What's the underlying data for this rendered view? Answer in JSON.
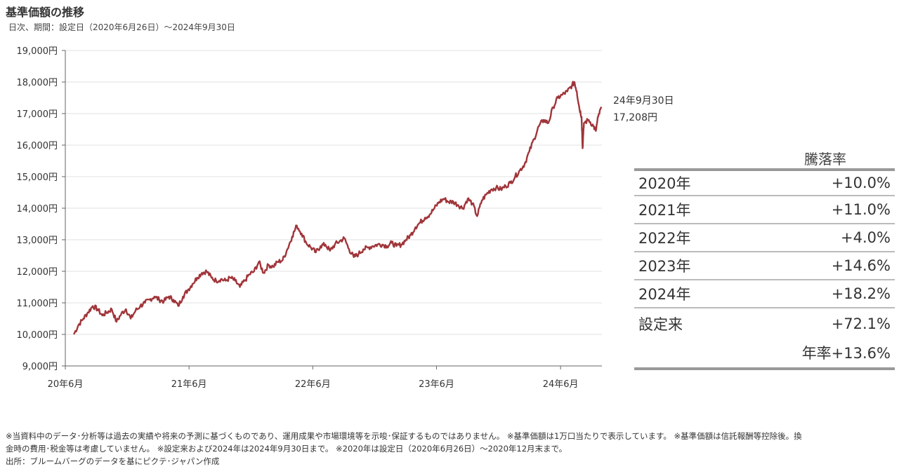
{
  "header": {
    "title": "基準価額の推移",
    "subtitle": "日次、期間：設定日（2020年6月26日）～2024年9月30日"
  },
  "chart_data": {
    "type": "line",
    "y_tick_labels": [
      "9,000円",
      "10,000円",
      "11,000円",
      "12,000円",
      "13,000円",
      "14,000円",
      "15,000円",
      "16,000円",
      "17,000円",
      "18,000円",
      "19,000円"
    ],
    "y_ticks": [
      9000,
      10000,
      11000,
      12000,
      13000,
      14000,
      15000,
      16000,
      17000,
      18000,
      19000
    ],
    "ylim": [
      9000,
      19000
    ],
    "x_tick_labels": [
      "20年6月",
      "21年6月",
      "22年6月",
      "23年6月",
      "24年6月"
    ],
    "x_ticks": [
      "2020-06",
      "2021-06",
      "2022-06",
      "2023-06",
      "2024-06"
    ],
    "xlim": [
      "2020-06-01",
      "2024-10-01"
    ],
    "grid": true,
    "series": [
      {
        "color": "#a0353a",
        "points": [
          [
            "2020-06-26",
            10000
          ],
          [
            "2020-07-10",
            10300
          ],
          [
            "2020-07-24",
            10500
          ],
          [
            "2020-08-07",
            10700
          ],
          [
            "2020-08-21",
            10900
          ],
          [
            "2020-09-04",
            10800
          ],
          [
            "2020-09-18",
            10600
          ],
          [
            "2020-10-02",
            10700
          ],
          [
            "2020-10-16",
            10800
          ],
          [
            "2020-10-30",
            10400
          ],
          [
            "2020-11-13",
            10650
          ],
          [
            "2020-11-27",
            10800
          ],
          [
            "2020-12-11",
            10500
          ],
          [
            "2020-12-25",
            10750
          ],
          [
            "2021-01-08",
            10900
          ],
          [
            "2021-01-22",
            11000
          ],
          [
            "2021-02-05",
            11100
          ],
          [
            "2021-02-19",
            11200
          ],
          [
            "2021-03-05",
            11100
          ],
          [
            "2021-03-19",
            11050
          ],
          [
            "2021-04-02",
            11200
          ],
          [
            "2021-04-16",
            11100
          ],
          [
            "2021-04-30",
            10900
          ],
          [
            "2021-05-14",
            11200
          ],
          [
            "2021-05-28",
            11400
          ],
          [
            "2021-06-11",
            11600
          ],
          [
            "2021-06-25",
            11800
          ],
          [
            "2021-07-09",
            11950
          ],
          [
            "2021-07-23",
            12000
          ],
          [
            "2021-08-06",
            11800
          ],
          [
            "2021-08-20",
            11700
          ],
          [
            "2021-09-03",
            11750
          ],
          [
            "2021-09-17",
            11700
          ],
          [
            "2021-10-01",
            11800
          ],
          [
            "2021-10-15",
            11700
          ],
          [
            "2021-10-29",
            11500
          ],
          [
            "2021-11-12",
            11700
          ],
          [
            "2021-11-26",
            11900
          ],
          [
            "2021-12-10",
            12000
          ],
          [
            "2021-12-24",
            12300
          ],
          [
            "2022-01-07",
            11950
          ],
          [
            "2022-01-21",
            12200
          ],
          [
            "2022-02-04",
            12150
          ],
          [
            "2022-02-18",
            12300
          ],
          [
            "2022-03-04",
            12350
          ],
          [
            "2022-03-18",
            12700
          ],
          [
            "2022-04-01",
            13100
          ],
          [
            "2022-04-15",
            13450
          ],
          [
            "2022-04-29",
            13200
          ],
          [
            "2022-05-13",
            12900
          ],
          [
            "2022-05-27",
            12750
          ],
          [
            "2022-06-10",
            12600
          ],
          [
            "2022-06-24",
            12800
          ],
          [
            "2022-07-08",
            12850
          ],
          [
            "2022-07-22",
            12650
          ],
          [
            "2022-08-05",
            12850
          ],
          [
            "2022-08-19",
            12950
          ],
          [
            "2022-09-02",
            13050
          ],
          [
            "2022-09-16",
            12700
          ],
          [
            "2022-09-30",
            12450
          ],
          [
            "2022-10-14",
            12550
          ],
          [
            "2022-10-28",
            12700
          ],
          [
            "2022-11-11",
            12750
          ],
          [
            "2022-11-25",
            12800
          ],
          [
            "2022-12-09",
            12850
          ],
          [
            "2022-12-23",
            12850
          ],
          [
            "2023-01-06",
            12800
          ],
          [
            "2023-01-20",
            12900
          ],
          [
            "2023-02-03",
            12800
          ],
          [
            "2023-02-17",
            12850
          ],
          [
            "2023-03-03",
            13000
          ],
          [
            "2023-03-17",
            13150
          ],
          [
            "2023-03-31",
            13400
          ],
          [
            "2023-04-14",
            13550
          ],
          [
            "2023-04-28",
            13700
          ],
          [
            "2023-05-12",
            13800
          ],
          [
            "2023-05-26",
            14000
          ],
          [
            "2023-06-09",
            14200
          ],
          [
            "2023-06-23",
            14300
          ],
          [
            "2023-07-07",
            14200
          ],
          [
            "2023-07-21",
            14200
          ],
          [
            "2023-08-04",
            14100
          ],
          [
            "2023-08-18",
            14000
          ],
          [
            "2023-09-01",
            14300
          ],
          [
            "2023-09-15",
            14150
          ],
          [
            "2023-09-29",
            13750
          ],
          [
            "2023-10-13",
            14250
          ],
          [
            "2023-10-27",
            14450
          ],
          [
            "2023-11-10",
            14600
          ],
          [
            "2023-11-24",
            14650
          ],
          [
            "2023-12-08",
            14600
          ],
          [
            "2023-12-22",
            14700
          ],
          [
            "2024-01-05",
            14800
          ],
          [
            "2024-01-19",
            15000
          ],
          [
            "2024-02-02",
            15200
          ],
          [
            "2024-02-16",
            15400
          ],
          [
            "2024-03-01",
            15800
          ],
          [
            "2024-03-15",
            16200
          ],
          [
            "2024-03-29",
            16600
          ],
          [
            "2024-04-12",
            16800
          ],
          [
            "2024-04-26",
            16700
          ],
          [
            "2024-05-10",
            17200
          ],
          [
            "2024-05-24",
            17500
          ],
          [
            "2024-06-07",
            17600
          ],
          [
            "2024-06-21",
            17700
          ],
          [
            "2024-07-05",
            17900
          ],
          [
            "2024-07-12",
            18000
          ],
          [
            "2024-07-19",
            17700
          ],
          [
            "2024-07-26",
            17200
          ],
          [
            "2024-08-02",
            16900
          ],
          [
            "2024-08-05",
            15900
          ],
          [
            "2024-08-09",
            16700
          ],
          [
            "2024-08-23",
            16800
          ],
          [
            "2024-09-06",
            16600
          ],
          [
            "2024-09-13",
            16450
          ],
          [
            "2024-09-20",
            16900
          ],
          [
            "2024-09-30",
            17208
          ]
        ]
      }
    ]
  },
  "annotation": {
    "date": "24年9月30日",
    "value": "17,208円"
  },
  "returns_table": {
    "header": "騰落率",
    "rows": [
      {
        "label": "2020年",
        "value": "+10.0%"
      },
      {
        "label": "2021年",
        "value": "+11.0%"
      },
      {
        "label": "2022年",
        "value": "+4.0%"
      },
      {
        "label": "2023年",
        "value": "+14.6%"
      },
      {
        "label": "2024年",
        "value": "+18.2%"
      }
    ],
    "since_inception": {
      "label": "設定来",
      "value": "+72.1%"
    },
    "annualized": "年率+13.6%"
  },
  "footnotes": {
    "line1": "※当資料中のデータ･分析等は過去の実績や将来の予測に基づくものであり、運用成果や市場環境等を示唆･保証するものではありません。 ※基準価額は1万口当たりで表示しています。 ※基準価額は信託報酬等控除後。換",
    "line2": "金時の費用･税金等は考慮していません。 ※設定来および2024年は2024年9月30日まで。 ※2020年は設定日（2020年6月26日）～2020年12月末まで。",
    "line3": "出所：ブルームバーグのデータを基にピクテ･ジャパン作成"
  }
}
